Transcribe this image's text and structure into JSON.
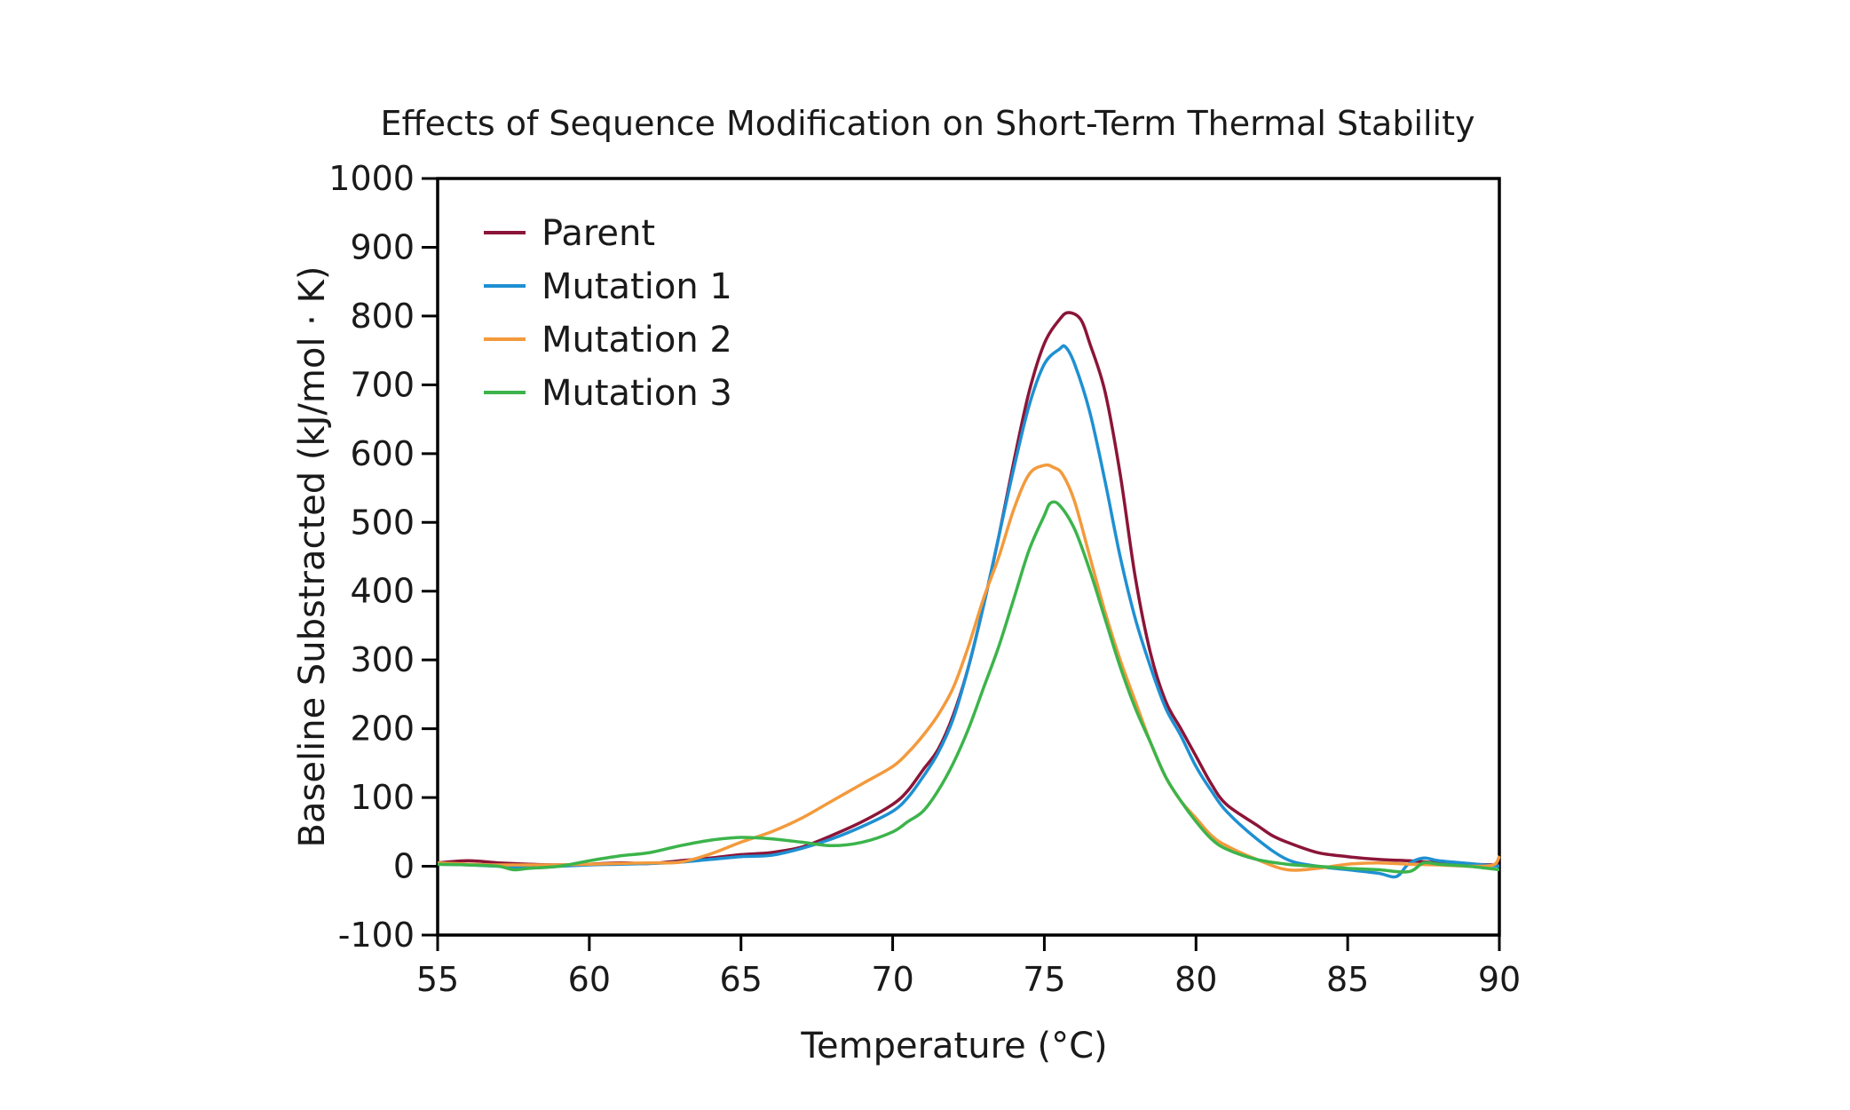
{
  "chart_data": {
    "type": "line",
    "title": "Effects of Sequence Modification on Short-Term Thermal Stability",
    "xlabel": "Temperature (°C)",
    "ylabel": "Baseline Substracted (kJ/mol · K)",
    "xlim": [
      55,
      90
    ],
    "ylim": [
      -100,
      1000
    ],
    "xticks": [
      55,
      60,
      65,
      70,
      75,
      80,
      85,
      90
    ],
    "yticks": [
      -100,
      0,
      100,
      200,
      300,
      400,
      500,
      600,
      700,
      800,
      900,
      1000
    ],
    "grid": false,
    "legend_position": "top-left",
    "series": [
      {
        "name": "Parent",
        "color": "#8b1538",
        "x": [
          55,
          56,
          57,
          58,
          59,
          60,
          61,
          62,
          63,
          64,
          65,
          66,
          67,
          68,
          69,
          70,
          70.5,
          71,
          71.5,
          72,
          72.5,
          73,
          73.5,
          74,
          74.5,
          75,
          75.5,
          75.8,
          76.2,
          76.5,
          77,
          77.5,
          78,
          78.5,
          79,
          79.5,
          80,
          80.5,
          81,
          82,
          82.5,
          83,
          84,
          85,
          86,
          87,
          88,
          89,
          90
        ],
        "y": [
          5,
          8,
          5,
          3,
          2,
          3,
          5,
          4,
          8,
          12,
          17,
          20,
          28,
          45,
          65,
          90,
          110,
          140,
          170,
          220,
          290,
          380,
          480,
          590,
          690,
          760,
          795,
          805,
          795,
          760,
          690,
          570,
          420,
          310,
          240,
          200,
          160,
          120,
          90,
          60,
          45,
          35,
          20,
          14,
          10,
          8,
          5,
          3,
          2
        ]
      },
      {
        "name": "Mutation 1",
        "color": "#1e90d2",
        "x": [
          55,
          56,
          57,
          58,
          59,
          60,
          61,
          62,
          63,
          64,
          65,
          66,
          67,
          68,
          69,
          70,
          70.5,
          71,
          71.5,
          72,
          72.5,
          73,
          73.5,
          74,
          74.5,
          75,
          75.5,
          75.7,
          76,
          76.5,
          77,
          77.5,
          78,
          78.5,
          79,
          79.5,
          80,
          80.5,
          81,
          82,
          83,
          84,
          85,
          86,
          86.6,
          87,
          87.5,
          88,
          89,
          90
        ],
        "y": [
          3,
          2,
          0,
          -2,
          0,
          2,
          3,
          4,
          6,
          10,
          14,
          16,
          26,
          40,
          58,
          80,
          100,
          130,
          165,
          215,
          290,
          380,
          480,
          580,
          670,
          730,
          752,
          755,
          730,
          660,
          560,
          450,
          360,
          290,
          230,
          190,
          145,
          110,
          80,
          40,
          10,
          0,
          -5,
          -10,
          -15,
          3,
          12,
          8,
          4,
          0
        ]
      },
      {
        "name": "Mutation 2",
        "color": "#f39a3c",
        "x": [
          55,
          56,
          57,
          58,
          59,
          60,
          61,
          62,
          63,
          64,
          65,
          66,
          67,
          68,
          69,
          70,
          70.5,
          71,
          71.5,
          72,
          72.5,
          73,
          73.5,
          74,
          74.5,
          75,
          75.3,
          75.6,
          76,
          76.5,
          77,
          77.5,
          78,
          78.5,
          79,
          79.5,
          80,
          80.5,
          81,
          82,
          83,
          84,
          85,
          86,
          87,
          88,
          89,
          89.8,
          90
        ],
        "y": [
          5,
          3,
          2,
          2,
          2,
          3,
          4,
          5,
          6,
          18,
          35,
          50,
          70,
          95,
          120,
          145,
          165,
          190,
          220,
          260,
          320,
          390,
          450,
          520,
          570,
          583,
          580,
          570,
          530,
          450,
          370,
          300,
          240,
          180,
          130,
          95,
          70,
          45,
          30,
          10,
          -5,
          -3,
          3,
          5,
          3,
          2,
          0,
          2,
          15
        ]
      },
      {
        "name": "Mutation 3",
        "color": "#3cb44b",
        "x": [
          55,
          56,
          57,
          57.5,
          58,
          59,
          60,
          61,
          62,
          63,
          64,
          65,
          66,
          67,
          68,
          69,
          70,
          70.5,
          71,
          71.5,
          72,
          72.5,
          73,
          73.5,
          74,
          74.5,
          75,
          75.2,
          75.5,
          76,
          76.5,
          77,
          77.5,
          78,
          78.5,
          79,
          79.5,
          80,
          80.5,
          81,
          82,
          83,
          84,
          85,
          86,
          87,
          87.5,
          88,
          89,
          90
        ],
        "y": [
          3,
          2,
          0,
          -5,
          -3,
          0,
          8,
          15,
          20,
          30,
          38,
          42,
          40,
          35,
          30,
          35,
          50,
          65,
          80,
          110,
          150,
          200,
          260,
          320,
          390,
          460,
          510,
          528,
          525,
          490,
          430,
          360,
          290,
          230,
          180,
          130,
          95,
          65,
          40,
          25,
          10,
          3,
          0,
          -3,
          -5,
          -8,
          5,
          3,
          0,
          -5
        ]
      }
    ]
  }
}
